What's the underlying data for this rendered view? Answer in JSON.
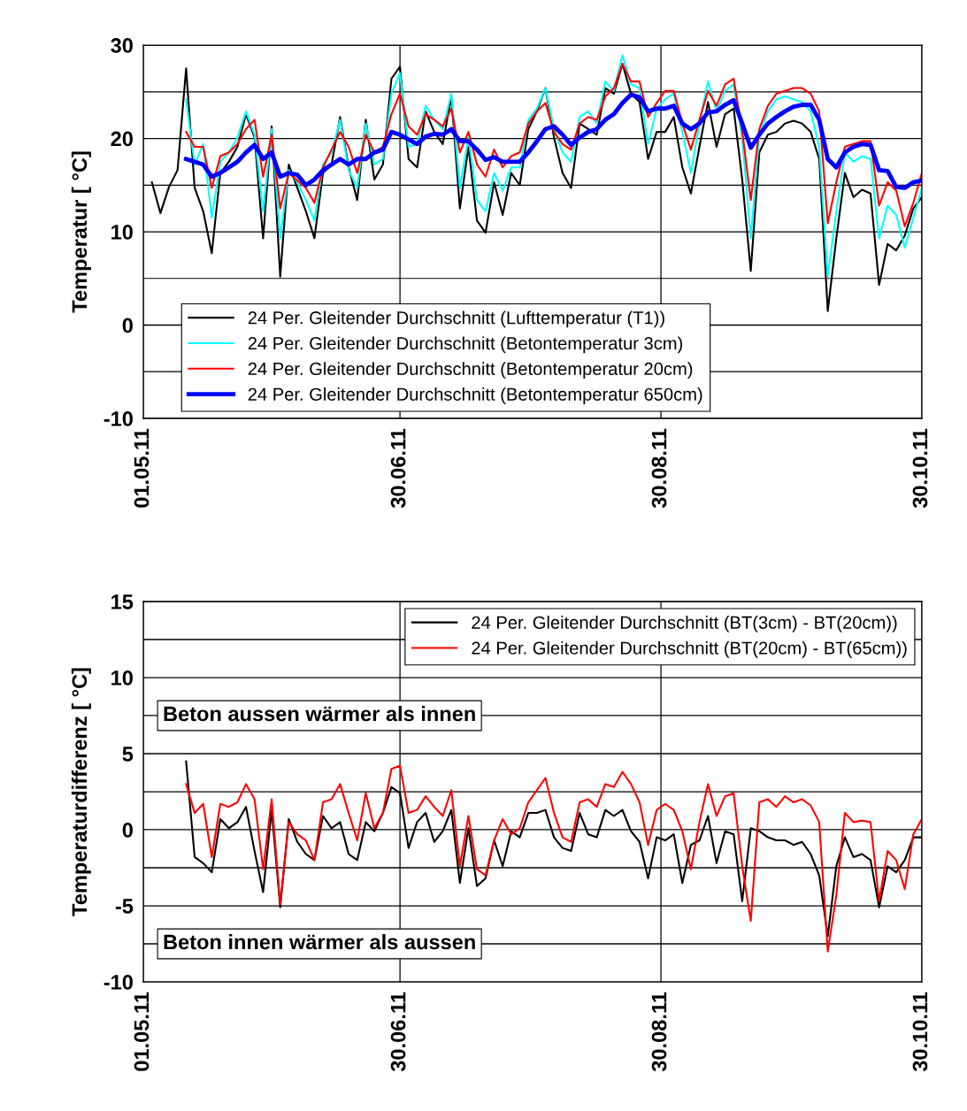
{
  "chart_data": [
    {
      "type": "line",
      "ylabel": "Temperatur [ °C]",
      "xlim": [
        "2011-05-01",
        "2011-10-30"
      ],
      "ylim": [
        -10,
        30
      ],
      "xticks": [
        {
          "value": "2011-05-01",
          "label": "01.05.11"
        },
        {
          "value": "2011-06-30",
          "label": "30.06.11"
        },
        {
          "value": "2011-08-30",
          "label": "30.08.11"
        },
        {
          "value": "2011-10-30",
          "label": "30.10.11"
        }
      ],
      "yticks": [
        -10,
        {
          "value": -5,
          "label": null
        },
        0,
        {
          "value": 5,
          "label": null
        },
        10,
        {
          "value": 15,
          "label": null
        },
        20,
        {
          "value": 25,
          "label": null
        },
        30
      ],
      "grid": true,
      "legend": "bottom left",
      "x": [
        "2011-05-03",
        "2011-05-05",
        "2011-05-07",
        "2011-05-09",
        "2011-05-11",
        "2011-05-13",
        "2011-05-15",
        "2011-05-17",
        "2011-05-19",
        "2011-05-21",
        "2011-05-23",
        "2011-05-25",
        "2011-05-27",
        "2011-05-29",
        "2011-05-31",
        "2011-06-02",
        "2011-06-04",
        "2011-06-06",
        "2011-06-08",
        "2011-06-10",
        "2011-06-12",
        "2011-06-14",
        "2011-06-16",
        "2011-06-18",
        "2011-06-20",
        "2011-06-22",
        "2011-06-24",
        "2011-06-26",
        "2011-06-28",
        "2011-06-30",
        "2011-07-02",
        "2011-07-04",
        "2011-07-06",
        "2011-07-08",
        "2011-07-10",
        "2011-07-12",
        "2011-07-14",
        "2011-07-16",
        "2011-07-18",
        "2011-07-20",
        "2011-07-22",
        "2011-07-24",
        "2011-07-26",
        "2011-07-28",
        "2011-07-30",
        "2011-08-01",
        "2011-08-03",
        "2011-08-05",
        "2011-08-07",
        "2011-08-09",
        "2011-08-11",
        "2011-08-13",
        "2011-08-15",
        "2011-08-17",
        "2011-08-19",
        "2011-08-21",
        "2011-08-23",
        "2011-08-25",
        "2011-08-27",
        "2011-08-29",
        "2011-08-31",
        "2011-09-02",
        "2011-09-04",
        "2011-09-06",
        "2011-09-08",
        "2011-09-10",
        "2011-09-12",
        "2011-09-14",
        "2011-09-16",
        "2011-09-18",
        "2011-09-20",
        "2011-09-22",
        "2011-09-24",
        "2011-09-26",
        "2011-09-28",
        "2011-09-30",
        "2011-10-02",
        "2011-10-04",
        "2011-10-06",
        "2011-10-08",
        "2011-10-10",
        "2011-10-12",
        "2011-10-14",
        "2011-10-16",
        "2011-10-18",
        "2011-10-20",
        "2011-10-22",
        "2011-10-24",
        "2011-10-26",
        "2011-10-28",
        "2011-10-30"
      ],
      "series": [
        {
          "name": "24 Per. Gleitender Durchschnitt (Lufttemperatur (T1))",
          "color": "#000000",
          "values": [
            15.3,
            12.0,
            14.8,
            16.6,
            27.5,
            14.7,
            12.2,
            7.7,
            16.3,
            17.5,
            19.1,
            22.6,
            20.1,
            9.3,
            21.3,
            5.2,
            17.2,
            14.7,
            12.2,
            9.3,
            16.3,
            17.2,
            22.3,
            16.9,
            13.4,
            22.0,
            15.6,
            17.2,
            26.4,
            27.7,
            17.8,
            16.9,
            22.9,
            20.7,
            19.4,
            24.5,
            12.5,
            19.1,
            11.2,
            9.9,
            15.3,
            11.8,
            16.3,
            15.0,
            21.0,
            22.9,
            25.4,
            20.1,
            16.3,
            14.7,
            21.6,
            21.0,
            20.4,
            25.4,
            24.8,
            28.0,
            24.8,
            23.9,
            17.8,
            20.7,
            20.7,
            22.3,
            16.9,
            14.1,
            19.1,
            23.9,
            19.1,
            22.6,
            23.2,
            15.6,
            5.8,
            18.5,
            20.4,
            20.7,
            21.6,
            21.9,
            21.6,
            20.7,
            17.8,
            1.5,
            9.3,
            16.3,
            13.7,
            14.5,
            14.1,
            4.3,
            8.7,
            8.0,
            9.6,
            12.5,
            13.7
          ]
        },
        {
          "name": "24 Per. Gleitender Durchschnitt (Betontemperatur 3cm)",
          "color": "#00ffff",
          "values": [
            null,
            null,
            null,
            null,
            24.2,
            17.2,
            19.4,
            11.5,
            17.5,
            18.5,
            20.1,
            22.9,
            20.4,
            12.2,
            21.0,
            9.3,
            16.6,
            15.3,
            13.4,
            11.2,
            17.2,
            18.5,
            22.0,
            16.6,
            14.7,
            21.6,
            17.2,
            17.8,
            24.8,
            27.0,
            19.1,
            19.4,
            23.5,
            22.0,
            21.0,
            24.8,
            14.7,
            20.1,
            13.4,
            12.2,
            16.3,
            14.4,
            16.9,
            16.9,
            22.0,
            23.2,
            25.4,
            21.0,
            18.5,
            17.5,
            22.3,
            22.9,
            21.6,
            26.1,
            25.1,
            28.9,
            25.8,
            25.4,
            19.4,
            23.2,
            24.2,
            24.8,
            20.7,
            16.3,
            21.6,
            26.1,
            22.9,
            25.1,
            25.8,
            20.1,
            9.3,
            20.4,
            22.9,
            24.2,
            24.5,
            24.2,
            23.9,
            22.9,
            19.1,
            5.2,
            12.2,
            18.5,
            17.5,
            18.1,
            17.8,
            9.3,
            12.8,
            11.8,
            8.3,
            11.5,
            14.7
          ]
        },
        {
          "name": "24 Per. Gleitender Durchschnitt (Betontemperatur 20cm)",
          "color": "#ff0000",
          "values": [
            null,
            null,
            null,
            null,
            20.7,
            19.1,
            19.1,
            14.7,
            18.1,
            18.5,
            19.4,
            21.0,
            22.0,
            15.9,
            20.4,
            12.5,
            16.3,
            15.5,
            14.7,
            13.1,
            16.9,
            18.8,
            20.7,
            19.1,
            16.3,
            20.4,
            18.5,
            19.1,
            22.6,
            24.8,
            21.3,
            20.4,
            22.6,
            22.0,
            21.3,
            23.2,
            18.5,
            20.7,
            17.2,
            15.9,
            18.8,
            16.9,
            18.1,
            18.5,
            21.6,
            22.9,
            23.8,
            20.7,
            19.4,
            18.8,
            21.6,
            22.3,
            22.0,
            24.5,
            25.4,
            28.0,
            26.1,
            26.1,
            22.3,
            23.8,
            25.1,
            25.1,
            21.6,
            18.8,
            22.0,
            25.1,
            23.5,
            25.8,
            26.4,
            20.8,
            13.4,
            21.0,
            23.5,
            24.8,
            25.1,
            25.4,
            25.4,
            24.8,
            22.9,
            10.9,
            15.3,
            19.1,
            19.4,
            19.7,
            19.7,
            12.8,
            15.3,
            14.4,
            10.6,
            13.1,
            16.3
          ]
        },
        {
          "name": "24 Per. Gleitender Durchschnitt (Betontemperatur 650cm)",
          "color": "#0000ff",
          "values": [
            null,
            null,
            null,
            null,
            17.8,
            17.5,
            17.2,
            15.9,
            16.3,
            16.9,
            17.5,
            18.5,
            19.3,
            17.8,
            18.5,
            15.9,
            16.3,
            16.1,
            15.0,
            15.6,
            16.6,
            17.2,
            17.8,
            17.2,
            17.8,
            17.8,
            18.5,
            18.8,
            20.7,
            20.4,
            19.9,
            19.4,
            20.2,
            20.5,
            20.4,
            21.0,
            19.7,
            19.7,
            18.8,
            17.7,
            18.0,
            17.5,
            17.5,
            17.5,
            18.5,
            19.7,
            21.0,
            21.3,
            20.4,
            19.3,
            20.1,
            20.7,
            21.0,
            22.0,
            22.6,
            23.8,
            24.7,
            24.4,
            22.9,
            23.2,
            23.2,
            23.5,
            21.6,
            21.0,
            21.6,
            22.8,
            22.9,
            23.6,
            24.1,
            21.6,
            19.0,
            20.4,
            21.6,
            22.3,
            22.9,
            23.4,
            23.6,
            23.6,
            22.0,
            17.8,
            16.9,
            18.5,
            19.1,
            19.4,
            19.3,
            16.6,
            16.5,
            14.8,
            14.7,
            15.3,
            15.5
          ]
        }
      ]
    },
    {
      "type": "line",
      "ylabel": "Temperaturdifferenz [ °C]",
      "xlim": [
        "2011-05-01",
        "2011-10-30"
      ],
      "ylim": [
        -10,
        15
      ],
      "xticks": [
        {
          "value": "2011-05-01",
          "label": "01.05.11"
        },
        {
          "value": "2011-06-30",
          "label": "30.06.11"
        },
        {
          "value": "2011-08-30",
          "label": "30.08.11"
        },
        {
          "value": "2011-10-30",
          "label": "30.10.11"
        }
      ],
      "yticks": [
        -10,
        {
          "value": -7.5,
          "label": null
        },
        -5,
        {
          "value": -2.5,
          "label": null
        },
        0,
        {
          "value": 2.5,
          "label": null
        },
        5,
        {
          "value": 7.5,
          "label": null
        },
        10,
        {
          "value": 12.5,
          "label": null
        },
        15
      ],
      "grid": true,
      "legend": "top right",
      "annotations": [
        "Beton aussen wärmer als innen",
        "Beton innen wärmer als aussen"
      ],
      "x": [
        "2011-05-11",
        "2011-05-13",
        "2011-05-15",
        "2011-05-17",
        "2011-05-19",
        "2011-05-21",
        "2011-05-23",
        "2011-05-25",
        "2011-05-27",
        "2011-05-29",
        "2011-05-31",
        "2011-06-02",
        "2011-06-04",
        "2011-06-06",
        "2011-06-08",
        "2011-06-10",
        "2011-06-12",
        "2011-06-14",
        "2011-06-16",
        "2011-06-18",
        "2011-06-20",
        "2011-06-22",
        "2011-06-24",
        "2011-06-26",
        "2011-06-28",
        "2011-06-30",
        "2011-07-02",
        "2011-07-04",
        "2011-07-06",
        "2011-07-08",
        "2011-07-10",
        "2011-07-12",
        "2011-07-14",
        "2011-07-16",
        "2011-07-18",
        "2011-07-20",
        "2011-07-22",
        "2011-07-24",
        "2011-07-26",
        "2011-07-28",
        "2011-07-30",
        "2011-08-01",
        "2011-08-03",
        "2011-08-05",
        "2011-08-07",
        "2011-08-09",
        "2011-08-11",
        "2011-08-13",
        "2011-08-15",
        "2011-08-17",
        "2011-08-19",
        "2011-08-21",
        "2011-08-23",
        "2011-08-25",
        "2011-08-27",
        "2011-08-29",
        "2011-08-31",
        "2011-09-02",
        "2011-09-04",
        "2011-09-06",
        "2011-09-08",
        "2011-09-10",
        "2011-09-12",
        "2011-09-14",
        "2011-09-16",
        "2011-09-18",
        "2011-09-20",
        "2011-09-22",
        "2011-09-24",
        "2011-09-26",
        "2011-09-28",
        "2011-09-30",
        "2011-10-02",
        "2011-10-04",
        "2011-10-06",
        "2011-10-08",
        "2011-10-10",
        "2011-10-12",
        "2011-10-14",
        "2011-10-16",
        "2011-10-18",
        "2011-10-20",
        "2011-10-22",
        "2011-10-24",
        "2011-10-26",
        "2011-10-28",
        "2011-10-30"
      ],
      "series": [
        {
          "name": "24 Per. Gleitender Durchschnitt (BT(3cm) - BT(20cm))",
          "color": "#000000",
          "values": [
            4.5,
            -1.8,
            -2.2,
            -2.8,
            0.7,
            0.1,
            0.5,
            1.5,
            -1.4,
            -4.1,
            1.3,
            -5.1,
            0.7,
            -0.8,
            -1.6,
            -2.0,
            0.9,
            0.1,
            0.5,
            -1.6,
            -2.0,
            0.5,
            -0.1,
            1.1,
            2.8,
            2.4,
            -1.2,
            0.5,
            1.1,
            -0.8,
            -0.1,
            1.3,
            -3.5,
            0.1,
            -3.7,
            -3.2,
            -0.7,
            -2.4,
            -0.1,
            -0.5,
            1.1,
            1.1,
            1.3,
            -0.5,
            -1.2,
            -1.4,
            1.1,
            -0.3,
            -0.5,
            1.3,
            0.9,
            1.3,
            -0.1,
            -0.8,
            -3.2,
            -0.5,
            -0.7,
            -0.3,
            -3.5,
            -1.0,
            -0.7,
            0.9,
            -2.2,
            -0.1,
            -0.3,
            -4.7,
            0.1,
            -0.1,
            -0.5,
            -0.7,
            -0.7,
            -1.0,
            -0.8,
            -1.6,
            -3.0,
            -7.0,
            -2.4,
            -0.5,
            -1.8,
            -1.6,
            -2.0,
            -5.1,
            -2.4,
            -2.8,
            -2.0,
            -0.5,
            -0.5
          ]
        },
        {
          "name": "24 Per. Gleitender Durchschnitt (BT(20cm) - BT(65cm))",
          "color": "#ff0000",
          "values": [
            3.0,
            1.1,
            1.7,
            -1.8,
            1.7,
            1.5,
            1.8,
            3.0,
            2.0,
            -2.6,
            2.0,
            -4.9,
            0.5,
            -0.3,
            -0.7,
            -2.0,
            1.8,
            2.0,
            3.0,
            1.1,
            -0.7,
            2.4,
            0.1,
            1.1,
            4.0,
            4.2,
            1.1,
            1.3,
            2.2,
            1.5,
            0.9,
            2.6,
            -2.4,
            0.9,
            -2.6,
            -3.0,
            -0.7,
            0.7,
            -0.3,
            0.1,
            1.8,
            2.6,
            3.4,
            1.1,
            -0.5,
            -0.8,
            1.8,
            2.0,
            1.5,
            3.0,
            2.8,
            3.8,
            3.0,
            1.8,
            -1.0,
            1.3,
            1.7,
            1.3,
            -0.1,
            -2.6,
            0.5,
            3.0,
            0.9,
            2.2,
            2.4,
            -2.4,
            -6.0,
            1.8,
            2.0,
            1.5,
            2.2,
            1.8,
            2.0,
            1.6,
            0.5,
            -8.0,
            -4.3,
            1.1,
            0.5,
            0.6,
            0.5,
            -4.7,
            -1.4,
            -2.0,
            -3.9,
            -0.3,
            0.7
          ]
        }
      ]
    }
  ]
}
